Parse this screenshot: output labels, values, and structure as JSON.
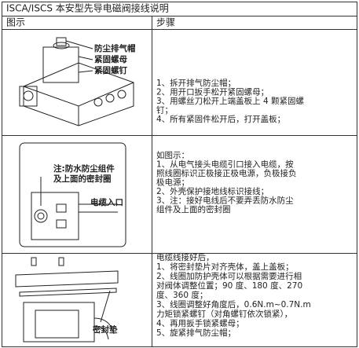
{
  "table": {
    "title": "ISCA/ISCS 本安型先导电磁阀接线说明",
    "header": [
      "图示",
      "步骤"
    ],
    "rows": [
      {
        "labels": [
          "防尘排气帽",
          "紧固螺母",
          "紧固螺钉"
        ],
        "steps": [
          "1、拆开排气防尘帽；",
          "2、用开口扳手松开紧固螺母；",
          "3、用螺丝刀松开上端盖板上 4 颗紧固螺",
          "钉；",
          "4、所有紧固件松开后，打开盖板；"
        ]
      },
      {
        "labels": [
          "注:防水防尘组件",
          "及上面的密封圈",
          "电缆入口"
        ],
        "steps": [
          "如图示：",
          "1、从电气接头电缆引口接入电缆，按",
          "照线圈标识正极接正极电源，负极接负",
          "极电源；",
          "2、外壳保护接地线标识接线；",
          "3、注：接好电线后不要弄丢防水防尘",
          "组件及上面的密封圈"
        ]
      },
      {
        "labels": [
          "密封垫"
        ],
        "steps": [
          "电缆线接好后，",
          "1、将密封垫片对齐壳体，盖上盖板；",
          "2、线圈加防护壳体可以根据需要进行相",
          "对阀体调整位置；90 度、180 度、270",
          "度、360 度；",
          "3、线圈调整好角度后，0.6N.m~0.7N.m",
          "力矩锁紧螺钉（对角螺钉依次锁紧），",
          "4、再用扳手锁紧螺母；",
          "5、旋紧排气防尘帽；"
        ]
      }
    ]
  }
}
